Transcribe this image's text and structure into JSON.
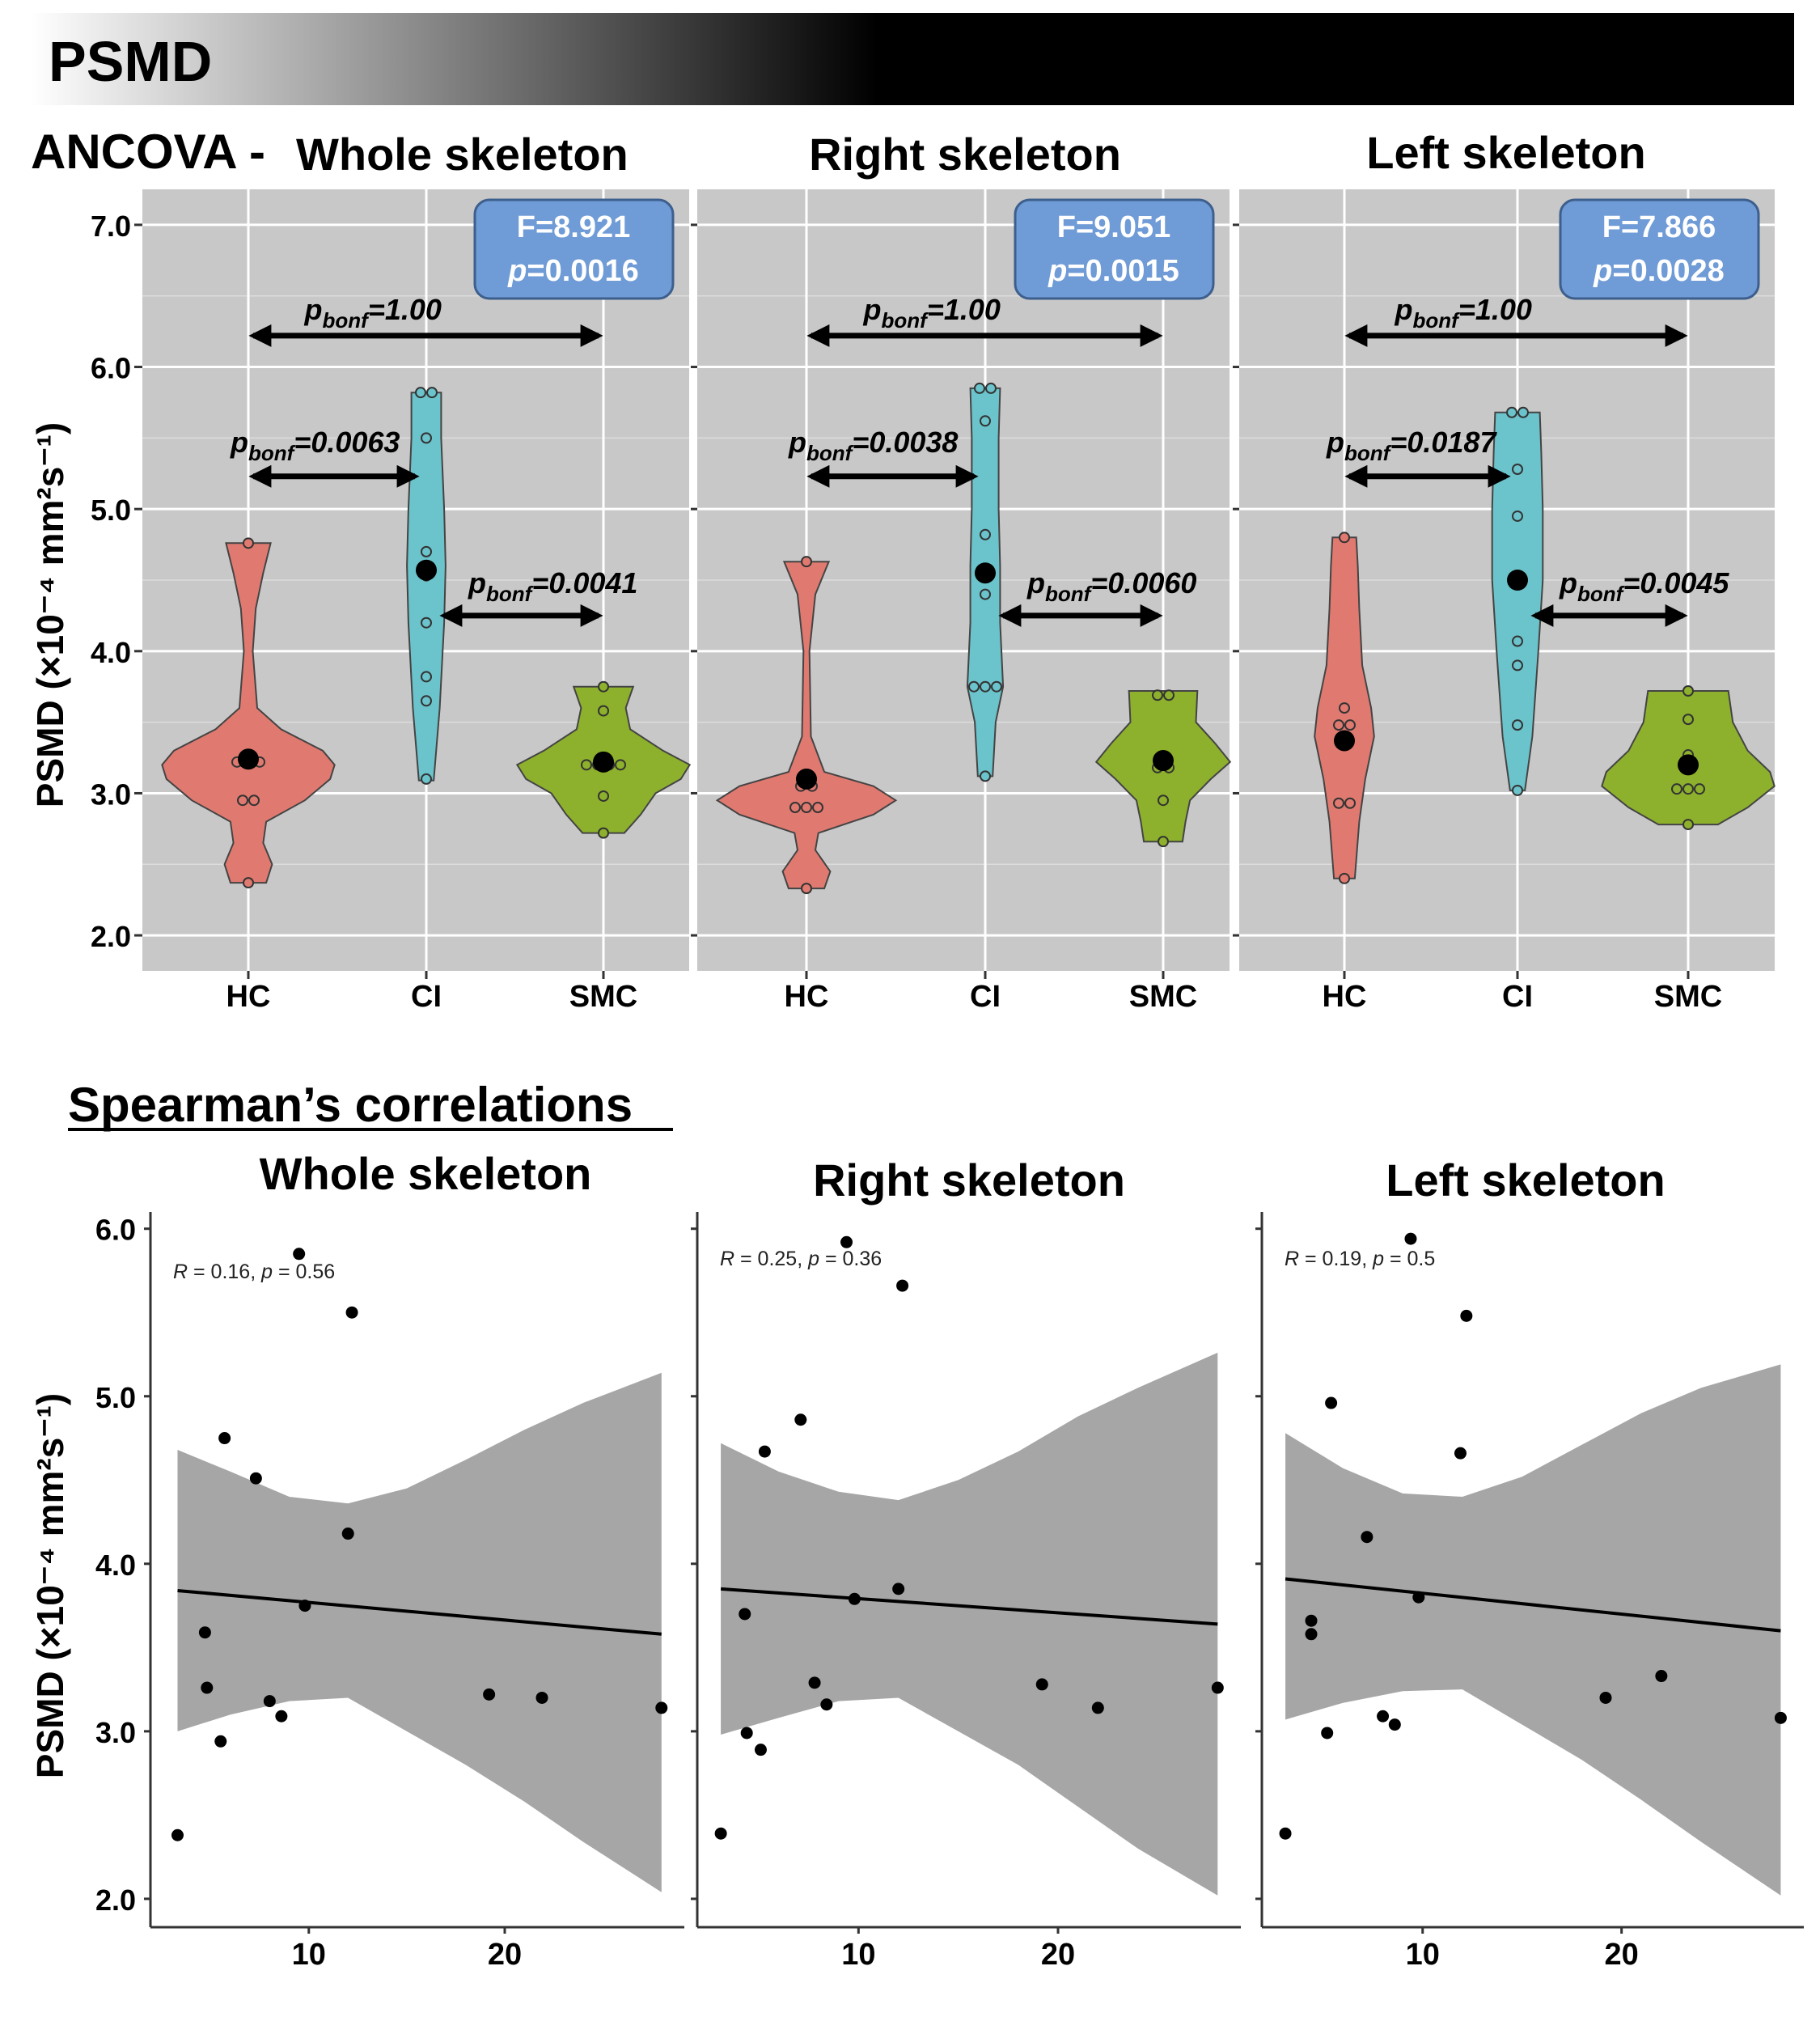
{
  "header": {
    "title": "PSMD"
  },
  "colors": {
    "hc": "#e07a70",
    "ci": "#6bc3cb",
    "smc": "#8db12c",
    "panel_bg": "#c8c8c8",
    "stat_box": "#6f9bd6",
    "band": "#a6a6a6"
  },
  "ancova": {
    "section_label": "ANCOVA -",
    "ylabel": "PSMD (×10⁻⁴ mm²s⁻¹)",
    "yticks": [
      "2.0",
      "3.0",
      "4.0",
      "5.0",
      "6.0",
      "7.0"
    ],
    "categories": [
      "HC",
      "CI",
      "SMC"
    ],
    "p_prefix": "p",
    "p_sub": "bonf",
    "panels": [
      {
        "title": "Whole skeleton",
        "f_stat": "F=8.921",
        "p_value": "p=0.0016",
        "p_hc_ci": "=0.0063",
        "p_ci_smc": "=0.0041",
        "p_hc_smc": "=1.00"
      },
      {
        "title": "Right skeleton",
        "f_stat": "F=9.051",
        "p_value": "p=0.0015",
        "p_hc_ci": "=0.0038",
        "p_ci_smc": "=0.0060",
        "p_hc_smc": "=1.00"
      },
      {
        "title": "Left skeleton",
        "f_stat": "F=7.866",
        "p_value": "p=0.0028",
        "p_hc_ci": "=0.0187",
        "p_ci_smc": "=0.0045",
        "p_hc_smc": "=1.00"
      }
    ]
  },
  "spearman": {
    "heading": "Spearman’s correlations",
    "ylabel": "PSMD (×10⁻⁴ mm²s⁻¹)",
    "yticks": [
      "2.0",
      "3.0",
      "4.0",
      "5.0",
      "6.0"
    ],
    "xticks": [
      "10",
      "20"
    ],
    "panels": [
      {
        "title": "Whole skeleton",
        "r_label": "R",
        "r_value": " = 0.16, ",
        "p_label": "p",
        "p_value": " = 0.56"
      },
      {
        "title": "Right skeleton",
        "r_label": "R",
        "r_value": " = 0.25, ",
        "p_label": "p",
        "p_value": " = 0.36"
      },
      {
        "title": "Left skeleton",
        "r_label": "R",
        "r_value": " = 0.19, ",
        "p_label": "p",
        "p_value": " = 0.5"
      }
    ]
  },
  "chart_data": [
    {
      "type": "violin",
      "title": "ANCOVA - Whole skeleton",
      "ylabel": "PSMD (×10⁻⁴ mm²s⁻¹)",
      "ylim": [
        1.75,
        7.25
      ],
      "categories": [
        "HC",
        "CI",
        "SMC"
      ],
      "groups": [
        {
          "name": "HC",
          "mean": 3.24,
          "min": 2.37,
          "max": 4.76,
          "points": [
            4.76,
            3.22,
            3.22,
            3.22,
            2.95,
            2.95,
            2.37
          ],
          "shape": [
            [
              2.37,
              0.12
            ],
            [
              2.5,
              0.16
            ],
            [
              2.65,
              0.1
            ],
            [
              2.8,
              0.12
            ],
            [
              2.95,
              0.38
            ],
            [
              3.1,
              0.55
            ],
            [
              3.2,
              0.58
            ],
            [
              3.3,
              0.5
            ],
            [
              3.45,
              0.22
            ],
            [
              3.6,
              0.06
            ],
            [
              4.0,
              0.03
            ],
            [
              4.3,
              0.05
            ],
            [
              4.55,
              0.1
            ],
            [
              4.76,
              0.15
            ]
          ]
        },
        {
          "name": "CI",
          "mean": 4.57,
          "min": 3.09,
          "max": 5.82,
          "points": [
            5.82,
            5.82,
            5.5,
            4.7,
            4.53,
            4.2,
            3.82,
            3.65,
            3.1
          ],
          "shape": [
            [
              3.09,
              0.05
            ],
            [
              3.6,
              0.09
            ],
            [
              4.2,
              0.12
            ],
            [
              4.6,
              0.13
            ],
            [
              5.0,
              0.12
            ],
            [
              5.5,
              0.1
            ],
            [
              5.82,
              0.1
            ]
          ]
        },
        {
          "name": "SMC",
          "mean": 3.22,
          "min": 2.72,
          "max": 3.75,
          "points": [
            3.75,
            3.58,
            3.2,
            3.2,
            3.2,
            3.2,
            2.98,
            2.72
          ],
          "shape": [
            [
              2.72,
              0.14
            ],
            [
              2.85,
              0.25
            ],
            [
              3.0,
              0.35
            ],
            [
              3.1,
              0.52
            ],
            [
              3.2,
              0.58
            ],
            [
              3.3,
              0.4
            ],
            [
              3.45,
              0.18
            ],
            [
              3.6,
              0.15
            ],
            [
              3.75,
              0.2
            ]
          ]
        }
      ],
      "comparisons": [
        {
          "pair": [
            "HC",
            "CI"
          ],
          "p_bonf": 0.0063
        },
        {
          "pair": [
            "CI",
            "SMC"
          ],
          "p_bonf": 0.0041
        },
        {
          "pair": [
            "HC",
            "SMC"
          ],
          "p_bonf": 1.0
        }
      ],
      "F": 8.921,
      "p": 0.0016
    },
    {
      "type": "violin",
      "title": "Right skeleton",
      "ylim": [
        1.75,
        7.25
      ],
      "categories": [
        "HC",
        "CI",
        "SMC"
      ],
      "groups": [
        {
          "name": "HC",
          "mean": 3.1,
          "min": 2.33,
          "max": 4.63,
          "points": [
            4.63,
            3.05,
            3.05,
            2.9,
            2.9,
            2.9,
            2.33
          ],
          "shape": [
            [
              2.33,
              0.12
            ],
            [
              2.45,
              0.16
            ],
            [
              2.6,
              0.06
            ],
            [
              2.72,
              0.08
            ],
            [
              2.85,
              0.45
            ],
            [
              2.95,
              0.6
            ],
            [
              3.05,
              0.45
            ],
            [
              3.15,
              0.12
            ],
            [
              3.4,
              0.03
            ],
            [
              4.0,
              0.02
            ],
            [
              4.4,
              0.06
            ],
            [
              4.63,
              0.15
            ]
          ]
        },
        {
          "name": "CI",
          "mean": 4.55,
          "min": 3.12,
          "max": 5.85,
          "points": [
            5.85,
            5.85,
            5.62,
            4.82,
            4.4,
            3.75,
            3.75,
            3.75,
            3.12
          ],
          "shape": [
            [
              3.12,
              0.05
            ],
            [
              3.5,
              0.07
            ],
            [
              3.75,
              0.12
            ],
            [
              4.2,
              0.1
            ],
            [
              4.6,
              0.1
            ],
            [
              5.0,
              0.09
            ],
            [
              5.5,
              0.09
            ],
            [
              5.85,
              0.1
            ]
          ]
        },
        {
          "name": "SMC",
          "mean": 3.23,
          "min": 2.66,
          "max": 3.72,
          "points": [
            3.69,
            3.69,
            3.25,
            3.18,
            3.18,
            2.95,
            2.66
          ],
          "shape": [
            [
              2.66,
              0.13
            ],
            [
              2.8,
              0.15
            ],
            [
              2.95,
              0.18
            ],
            [
              3.1,
              0.32
            ],
            [
              3.22,
              0.45
            ],
            [
              3.35,
              0.35
            ],
            [
              3.5,
              0.22
            ],
            [
              3.72,
              0.23
            ]
          ]
        }
      ],
      "comparisons": [
        {
          "pair": [
            "HC",
            "CI"
          ],
          "p_bonf": 0.0038
        },
        {
          "pair": [
            "CI",
            "SMC"
          ],
          "p_bonf": 0.006
        },
        {
          "pair": [
            "HC",
            "SMC"
          ],
          "p_bonf": 1.0
        }
      ],
      "F": 9.051,
      "p": 0.0015
    },
    {
      "type": "violin",
      "title": "Left skeleton",
      "ylim": [
        1.75,
        7.25
      ],
      "categories": [
        "HC",
        "CI",
        "SMC"
      ],
      "groups": [
        {
          "name": "HC",
          "mean": 3.37,
          "min": 2.4,
          "max": 4.8,
          "points": [
            4.8,
            3.6,
            3.48,
            3.48,
            2.93,
            2.93,
            2.4
          ],
          "shape": [
            [
              2.4,
              0.07
            ],
            [
              2.8,
              0.1
            ],
            [
              3.1,
              0.14
            ],
            [
              3.4,
              0.2
            ],
            [
              3.6,
              0.18
            ],
            [
              3.9,
              0.12
            ],
            [
              4.3,
              0.1
            ],
            [
              4.6,
              0.09
            ],
            [
              4.8,
              0.08
            ]
          ]
        },
        {
          "name": "CI",
          "mean": 4.5,
          "min": 3.02,
          "max": 5.68,
          "points": [
            5.68,
            5.68,
            5.28,
            4.95,
            4.07,
            3.9,
            3.48,
            3.02
          ],
          "shape": [
            [
              3.02,
              0.05
            ],
            [
              3.4,
              0.1
            ],
            [
              4.0,
              0.14
            ],
            [
              4.5,
              0.17
            ],
            [
              5.0,
              0.17
            ],
            [
              5.4,
              0.16
            ],
            [
              5.68,
              0.15
            ]
          ]
        },
        {
          "name": "SMC",
          "mean": 3.2,
          "min": 2.78,
          "max": 3.72,
          "points": [
            3.72,
            3.52,
            3.27,
            3.03,
            3.03,
            3.03,
            2.78
          ],
          "shape": [
            [
              2.78,
              0.2
            ],
            [
              2.9,
              0.4
            ],
            [
              3.05,
              0.58
            ],
            [
              3.15,
              0.55
            ],
            [
              3.3,
              0.4
            ],
            [
              3.5,
              0.3
            ],
            [
              3.72,
              0.27
            ]
          ]
        }
      ],
      "comparisons": [
        {
          "pair": [
            "HC",
            "CI"
          ],
          "p_bonf": 0.0187
        },
        {
          "pair": [
            "CI",
            "SMC"
          ],
          "p_bonf": 0.0045
        },
        {
          "pair": [
            "HC",
            "SMC"
          ],
          "p_bonf": 1.0
        }
      ],
      "F": 7.866,
      "p": 0.0028
    },
    {
      "type": "scatter",
      "title": "Whole skeleton",
      "ylabel": "PSMD (×10⁻⁴ mm²s⁻¹)",
      "xlim": [
        2,
        29
      ],
      "ylim": [
        1.85,
        6.1
      ],
      "points": [
        [
          3.3,
          2.38
        ],
        [
          4.7,
          3.59
        ],
        [
          4.8,
          3.26
        ],
        [
          5.5,
          2.94
        ],
        [
          5.7,
          4.75
        ],
        [
          7.3,
          4.51
        ],
        [
          8.0,
          3.18
        ],
        [
          8.6,
          3.09
        ],
        [
          9.5,
          5.85
        ],
        [
          9.8,
          3.75
        ],
        [
          12.0,
          4.18
        ],
        [
          12.2,
          5.5
        ],
        [
          19.2,
          3.22
        ],
        [
          21.9,
          3.2
        ],
        [
          28.0,
          3.14
        ]
      ],
      "fit": {
        "x": [
          3.3,
          28.0
        ],
        "y": [
          3.84,
          3.58
        ]
      },
      "ci_upper": [
        [
          3.3,
          4.68
        ],
        [
          6,
          4.55
        ],
        [
          9,
          4.4
        ],
        [
          12,
          4.36
        ],
        [
          15,
          4.45
        ],
        [
          18,
          4.62
        ],
        [
          21,
          4.8
        ],
        [
          24,
          4.96
        ],
        [
          28,
          5.14
        ]
      ],
      "ci_lower": [
        [
          3.3,
          3.0
        ],
        [
          6,
          3.1
        ],
        [
          9,
          3.18
        ],
        [
          12,
          3.2
        ],
        [
          15,
          3.0
        ],
        [
          18,
          2.8
        ],
        [
          21,
          2.58
        ],
        [
          24,
          2.34
        ],
        [
          28,
          2.04
        ]
      ],
      "annotation": "R = 0.16, p = 0.56"
    },
    {
      "type": "scatter",
      "title": "Right skeleton",
      "xlim": [
        2,
        29
      ],
      "ylim": [
        1.85,
        6.1
      ],
      "points": [
        [
          3.1,
          2.39
        ],
        [
          4.3,
          3.7
        ],
        [
          4.4,
          2.99
        ],
        [
          5.1,
          2.89
        ],
        [
          5.3,
          4.67
        ],
        [
          7.1,
          4.86
        ],
        [
          7.8,
          3.29
        ],
        [
          8.4,
          3.16
        ],
        [
          9.4,
          5.92
        ],
        [
          9.8,
          3.79
        ],
        [
          12.0,
          3.85
        ],
        [
          12.2,
          5.66
        ],
        [
          19.2,
          3.28
        ],
        [
          22.0,
          3.14
        ],
        [
          28.0,
          3.26
        ]
      ],
      "fit": {
        "x": [
          3.1,
          28.0
        ],
        "y": [
          3.85,
          3.64
        ]
      },
      "ci_upper": [
        [
          3.1,
          4.72
        ],
        [
          6,
          4.55
        ],
        [
          9,
          4.43
        ],
        [
          12,
          4.38
        ],
        [
          15,
          4.5
        ],
        [
          18,
          4.67
        ],
        [
          21,
          4.88
        ],
        [
          24,
          5.05
        ],
        [
          28,
          5.26
        ]
      ],
      "ci_lower": [
        [
          3.1,
          2.98
        ],
        [
          6,
          3.08
        ],
        [
          9,
          3.18
        ],
        [
          12,
          3.2
        ],
        [
          15,
          3.0
        ],
        [
          18,
          2.8
        ],
        [
          21,
          2.55
        ],
        [
          24,
          2.3
        ],
        [
          28,
          2.02
        ]
      ],
      "annotation": "R = 0.25, p = 0.36"
    },
    {
      "type": "scatter",
      "title": "Left skeleton",
      "xlim": [
        2,
        29
      ],
      "ylim": [
        1.85,
        6.1
      ],
      "points": [
        [
          3.1,
          2.39
        ],
        [
          4.4,
          3.66
        ],
        [
          4.4,
          3.58
        ],
        [
          5.2,
          2.99
        ],
        [
          5.4,
          4.96
        ],
        [
          7.2,
          4.16
        ],
        [
          8.0,
          3.09
        ],
        [
          8.6,
          3.04
        ],
        [
          9.4,
          5.94
        ],
        [
          9.8,
          3.8
        ],
        [
          11.9,
          4.66
        ],
        [
          12.2,
          5.48
        ],
        [
          19.2,
          3.2
        ],
        [
          22.0,
          3.33
        ],
        [
          28.0,
          3.08
        ]
      ],
      "fit": {
        "x": [
          3.1,
          28.0
        ],
        "y": [
          3.91,
          3.6
        ]
      },
      "ci_upper": [
        [
          3.1,
          4.78
        ],
        [
          6,
          4.57
        ],
        [
          9,
          4.42
        ],
        [
          12,
          4.4
        ],
        [
          15,
          4.52
        ],
        [
          18,
          4.71
        ],
        [
          21,
          4.9
        ],
        [
          24,
          5.05
        ],
        [
          28,
          5.19
        ]
      ],
      "ci_lower": [
        [
          3.1,
          3.07
        ],
        [
          6,
          3.17
        ],
        [
          9,
          3.24
        ],
        [
          12,
          3.25
        ],
        [
          15,
          3.04
        ],
        [
          18,
          2.83
        ],
        [
          21,
          2.59
        ],
        [
          24,
          2.34
        ],
        [
          28,
          2.02
        ]
      ],
      "annotation": "R = 0.19, p = 0.5"
    }
  ]
}
